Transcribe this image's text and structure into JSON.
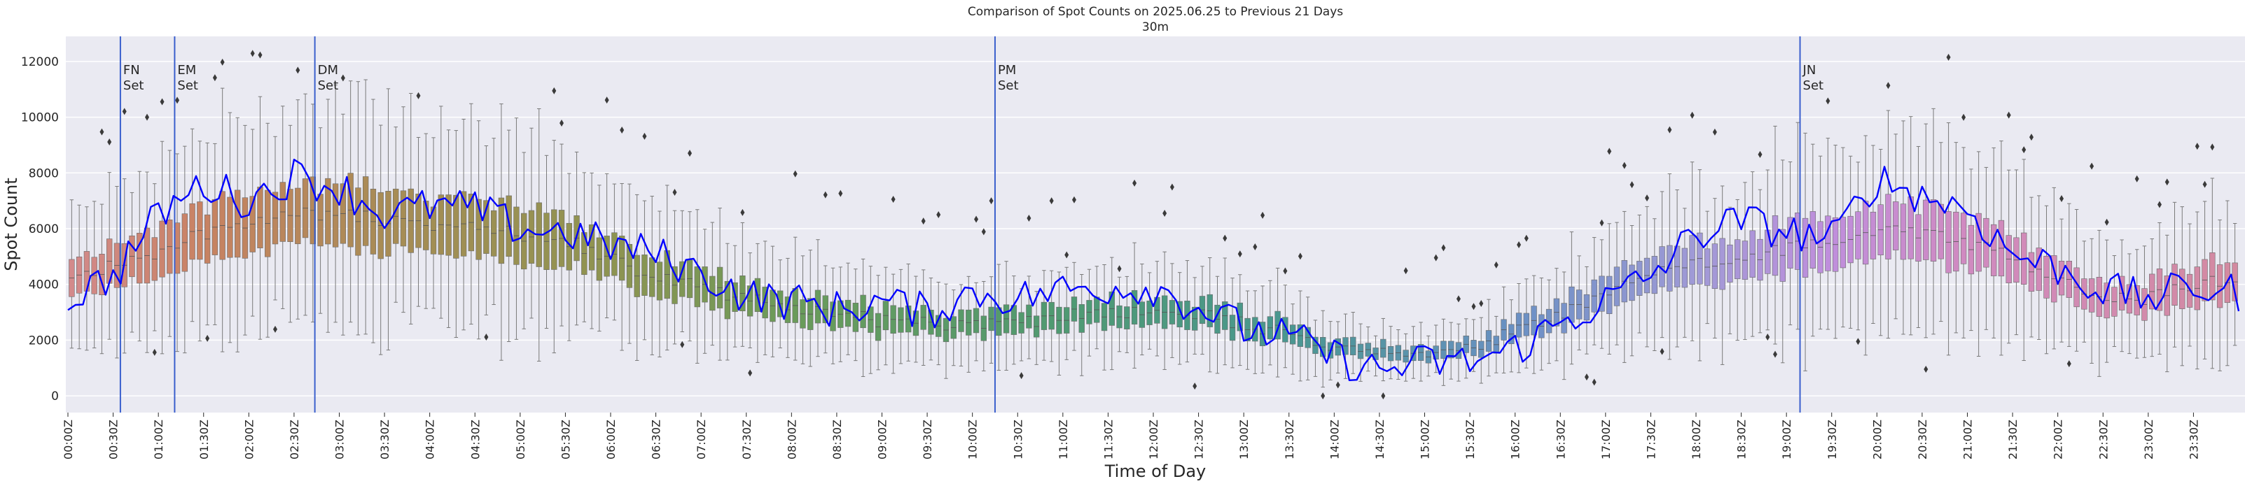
{
  "chart_data": {
    "type": "box",
    "title": "Comparison of Spot Counts on 2025.06.25 to Previous 21 Days",
    "subtitle": "30m",
    "xlabel": "Time of Day",
    "ylabel": "Spot Count",
    "ylim": [
      -600,
      12900
    ],
    "yticks": [
      0,
      2000,
      4000,
      6000,
      8000,
      10000,
      12000
    ],
    "xlim_hours": [
      0,
      24
    ],
    "grid": true,
    "background_color": "#eaeaf2",
    "line_color": "#0000ff",
    "vline_color": "#3a5fcd",
    "xtick_labels": [
      "00:00Z",
      "00:30Z",
      "01:00Z",
      "01:30Z",
      "02:00Z",
      "02:30Z",
      "03:00Z",
      "03:30Z",
      "04:00Z",
      "04:30Z",
      "05:00Z",
      "05:30Z",
      "06:00Z",
      "06:30Z",
      "07:00Z",
      "07:30Z",
      "08:00Z",
      "08:30Z",
      "09:00Z",
      "09:30Z",
      "10:00Z",
      "10:30Z",
      "11:00Z",
      "11:30Z",
      "12:00Z",
      "12:30Z",
      "13:00Z",
      "13:30Z",
      "14:00Z",
      "14:30Z",
      "15:00Z",
      "15:30Z",
      "16:00Z",
      "16:30Z",
      "17:00Z",
      "17:30Z",
      "18:00Z",
      "18:30Z",
      "19:00Z",
      "19:30Z",
      "20:00Z",
      "20:30Z",
      "21:00Z",
      "21:30Z",
      "22:00Z",
      "22:30Z",
      "23:00Z",
      "23:30Z"
    ],
    "vlines": [
      {
        "label": "FN\nSet",
        "hour": 0.58
      },
      {
        "label": "EM\nSet",
        "hour": 1.18
      },
      {
        "label": "DM\nSet",
        "hour": 2.73
      },
      {
        "label": "PM\nSet",
        "hour": 10.25
      },
      {
        "label": "JN\nSet",
        "hour": 19.15
      }
    ],
    "median_profile_hours": [
      0,
      0.5,
      1,
      1.5,
      2,
      2.5,
      3,
      3.5,
      4,
      4.5,
      5,
      5.5,
      6,
      6.5,
      7,
      7.5,
      8,
      8.5,
      9,
      9.5,
      10,
      10.5,
      11,
      11.5,
      12,
      12.5,
      13,
      13.5,
      14,
      14.5,
      15,
      15.5,
      16,
      16.5,
      17,
      17.5,
      18,
      18.5,
      19,
      19.5,
      20,
      20.5,
      21,
      21.5,
      22,
      22.5,
      23,
      23.5,
      24
    ],
    "median_profile_values": [
      4100,
      4700,
      5200,
      5800,
      6200,
      6600,
      6500,
      6300,
      6100,
      6000,
      5800,
      5600,
      5000,
      4200,
      3900,
      3500,
      3200,
      2900,
      2700,
      2600,
      2500,
      2600,
      2900,
      3000,
      3100,
      2900,
      2600,
      2200,
      1800,
      1500,
      1500,
      1700,
      2300,
      2900,
      3600,
      4300,
      4700,
      5000,
      5300,
      5600,
      6000,
      5900,
      5500,
      4900,
      4200,
      3600,
      3500,
      4000,
      4300
    ],
    "current_day_line": {
      "name": "2025.06.25",
      "hours": [
        0,
        0.5,
        1,
        1.5,
        2,
        2.5,
        3,
        3.5,
        4,
        4.5,
        5,
        5.5,
        6,
        6.5,
        7,
        7.5,
        8,
        8.5,
        9,
        9.5,
        10,
        10.5,
        11,
        11.5,
        12,
        12.5,
        13,
        13.5,
        14,
        14.5,
        15,
        15.5,
        16,
        16.5,
        17,
        17.5,
        18,
        18.5,
        19,
        19.5,
        20,
        20.5,
        21,
        21.5,
        22,
        22.5,
        23,
        23.5,
        24
      ],
      "values": [
        3500,
        4300,
        6500,
        7600,
        7000,
        7900,
        7500,
        6500,
        6800,
        6700,
        6000,
        5900,
        5400,
        5100,
        4400,
        3600,
        3400,
        3100,
        3400,
        3000,
        3700,
        3500,
        3800,
        3900,
        3900,
        3200,
        2400,
        2100,
        1400,
        900,
        1200,
        1200,
        1700,
        2600,
        3400,
        4300,
        5800,
        6300,
        5900,
        5600,
        7800,
        7200,
        6700,
        5100,
        4600,
        3800,
        3500,
        3900,
        3700
      ]
    },
    "palette_stops": [
      {
        "hour": 0,
        "color": "#d38a8c"
      },
      {
        "hour": 1.5,
        "color": "#c88262"
      },
      {
        "hour": 3.5,
        "color": "#a88c55"
      },
      {
        "hour": 6,
        "color": "#8e9451"
      },
      {
        "hour": 8,
        "color": "#6a9b5a"
      },
      {
        "hour": 11,
        "color": "#4f9a72"
      },
      {
        "hour": 13.5,
        "color": "#4a9791"
      },
      {
        "hour": 16,
        "color": "#6a90c4"
      },
      {
        "hour": 18,
        "color": "#a09ad6"
      },
      {
        "hour": 19.5,
        "color": "#c08edc"
      },
      {
        "hour": 21,
        "color": "#d08ac0"
      },
      {
        "hour": 24,
        "color": "#d38aa0"
      }
    ]
  }
}
